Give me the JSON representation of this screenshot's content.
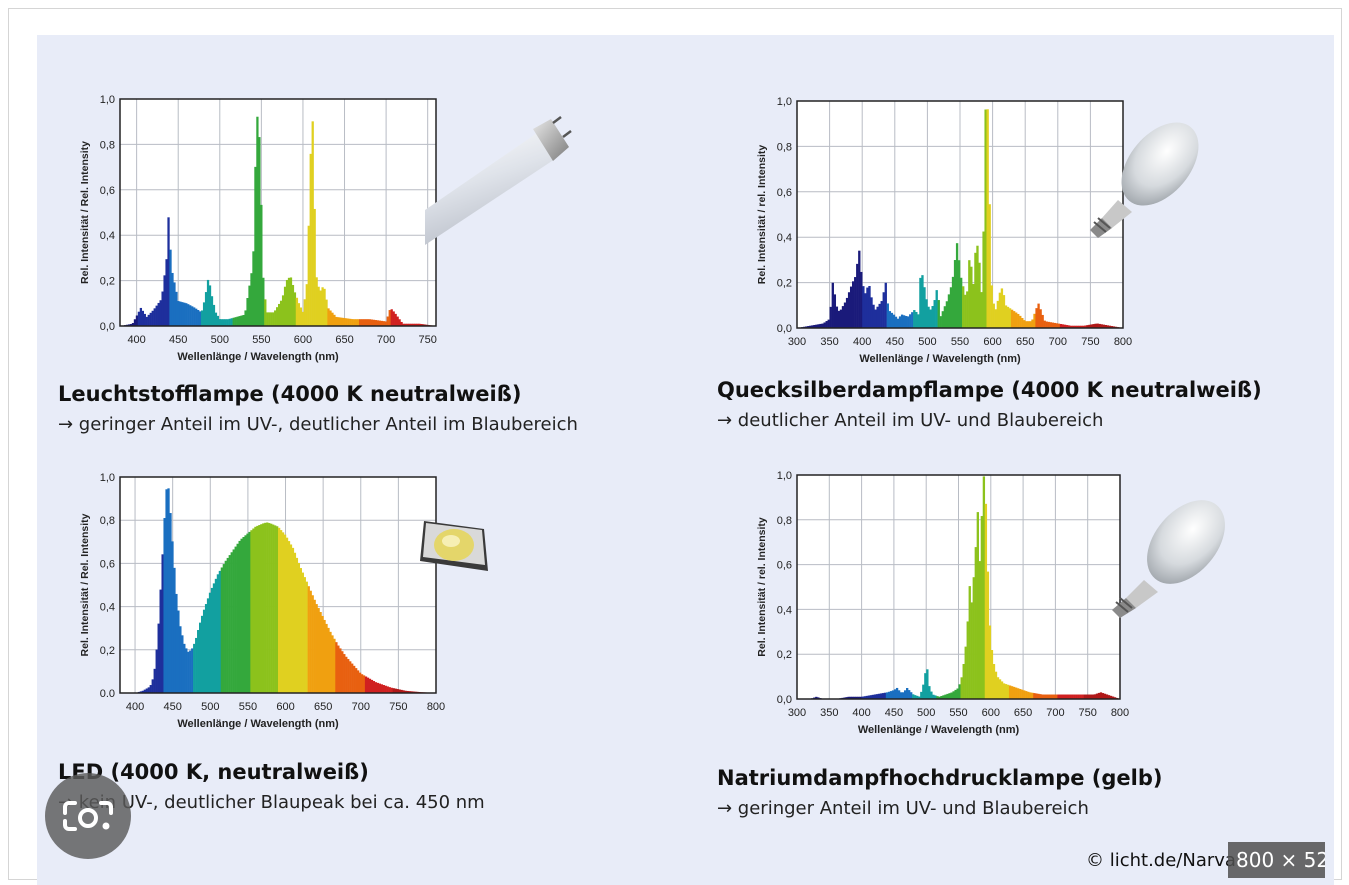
{
  "credit": "© licht.de/Narva",
  "size_badge": "800 × 52",
  "icons": {
    "lens": "google-lens-icon",
    "fluorescent": "fluorescent-tube-icon",
    "mercury": "mercury-bulb-icon",
    "led": "led-chip-icon",
    "sodium": "sodium-bulb-icon"
  },
  "spectrum_colors": [
    "#1a1a7a",
    "#1e2f9c",
    "#1a6fc0",
    "#12a0a0",
    "#34a83c",
    "#8cc21c",
    "#e0d020",
    "#f0a010",
    "#e86010",
    "#d02020",
    "#b01818"
  ],
  "lamps": [
    {
      "title": "Leuchtstofflampe (4000 K neutralweiß)",
      "subtitle": "→ geringer Anteil im UV-, deutlicher Anteil im Blaubereich"
    },
    {
      "title": "Quecksilberdampflampe (4000 K neutralweiß)",
      "subtitle": "→ deutlicher Anteil im UV- und Blaubereich"
    },
    {
      "title": "LED (4000 K, neutralweiß)",
      "subtitle": "→ kein UV-, deutlicher Blaupeak bei ca. 450 nm"
    },
    {
      "title": "Natriumdampfhochdrucklampe (gelb)",
      "subtitle": "→ geringer Anteil im UV- und Blaubereich"
    }
  ],
  "chart_data": [
    {
      "type": "bar",
      "xlabel": "Wellenlänge / Wavelength (nm)",
      "ylabel": "Rel. Intensität / Rel. Intensity",
      "xlim": [
        380,
        760
      ],
      "ylim": [
        0,
        1.0
      ],
      "x_ticks": [
        "400",
        "450",
        "500",
        "550",
        "600",
        "650",
        "700",
        "750"
      ],
      "y_ticks": [
        "0,0",
        "0,2",
        "0,4",
        "0,6",
        "0,8",
        "1,0"
      ],
      "grid": true,
      "x": [
        380,
        395,
        405,
        412,
        420,
        430,
        436,
        438,
        442,
        450,
        460,
        470,
        478,
        482,
        486,
        488,
        491,
        495,
        500,
        510,
        520,
        530,
        540,
        543,
        546,
        549,
        552,
        556,
        565,
        575,
        580,
        585,
        590,
        595,
        600,
        605,
        608,
        611,
        613,
        616,
        620,
        625,
        630,
        640,
        660,
        680,
        700,
        705,
        710,
        720,
        740,
        760
      ],
      "values": [
        0.0,
        0.01,
        0.08,
        0.04,
        0.07,
        0.12,
        0.3,
        0.49,
        0.25,
        0.11,
        0.1,
        0.08,
        0.06,
        0.12,
        0.21,
        0.18,
        0.12,
        0.06,
        0.03,
        0.03,
        0.04,
        0.05,
        0.28,
        0.75,
        1.0,
        0.65,
        0.22,
        0.06,
        0.06,
        0.12,
        0.2,
        0.22,
        0.15,
        0.1,
        0.06,
        0.2,
        0.6,
        1.0,
        0.65,
        0.22,
        0.15,
        0.18,
        0.08,
        0.04,
        0.03,
        0.03,
        0.02,
        0.08,
        0.06,
        0.01,
        0.01,
        0.0
      ]
    },
    {
      "type": "bar",
      "xlabel": "Wellenlänge / Wavelength (nm)",
      "ylabel": "Rel. Intensität / rel. Intensity",
      "xlim": [
        300,
        800
      ],
      "ylim": [
        0,
        1.0
      ],
      "x_ticks": [
        "300",
        "350",
        "400",
        "450",
        "500",
        "550",
        "600",
        "650",
        "700",
        "750",
        "800"
      ],
      "y_ticks": [
        "0,0",
        "0,2",
        "0,4",
        "0,6",
        "0,8",
        "1,0"
      ],
      "grid": true,
      "x": [
        300,
        320,
        340,
        350,
        355,
        360,
        365,
        375,
        385,
        390,
        395,
        400,
        405,
        410,
        415,
        420,
        430,
        436,
        440,
        448,
        455,
        460,
        470,
        480,
        486,
        490,
        500,
        505,
        510,
        515,
        520,
        530,
        538,
        546,
        550,
        560,
        565,
        570,
        575,
        580,
        583,
        585,
        588,
        590,
        593,
        597,
        600,
        605,
        610,
        615,
        620,
        630,
        640,
        650,
        660,
        670,
        680,
        700,
        720,
        740,
        760,
        780,
        800
      ],
      "values": [
        0.0,
        0.01,
        0.02,
        0.04,
        0.21,
        0.1,
        0.07,
        0.12,
        0.2,
        0.23,
        0.35,
        0.2,
        0.15,
        0.2,
        0.12,
        0.08,
        0.12,
        0.2,
        0.08,
        0.06,
        0.04,
        0.06,
        0.05,
        0.08,
        0.06,
        0.27,
        0.1,
        0.08,
        0.11,
        0.18,
        0.05,
        0.12,
        0.2,
        0.39,
        0.24,
        0.12,
        0.34,
        0.18,
        0.4,
        0.28,
        0.15,
        0.2,
        0.92,
        1.0,
        0.95,
        0.25,
        0.12,
        0.08,
        0.15,
        0.18,
        0.1,
        0.08,
        0.06,
        0.03,
        0.03,
        0.11,
        0.03,
        0.02,
        0.01,
        0.01,
        0.02,
        0.01,
        0.0
      ]
    },
    {
      "type": "area",
      "xlabel": "Wellenlänge / Wavelength (nm)",
      "ylabel": "Rel. Intensität / Rel. Intensity",
      "xlim": [
        380,
        800
      ],
      "ylim": [
        0,
        1.0
      ],
      "x_ticks": [
        "400",
        "450",
        "500",
        "550",
        "600",
        "650",
        "700",
        "750",
        "800"
      ],
      "y_ticks": [
        "0.0",
        "0,2",
        "0,4",
        "0,6",
        "0,8",
        "1,0"
      ],
      "grid": true,
      "x": [
        380,
        400,
        410,
        420,
        425,
        430,
        435,
        440,
        443,
        446,
        450,
        455,
        460,
        465,
        470,
        475,
        480,
        485,
        490,
        500,
        510,
        520,
        530,
        540,
        550,
        560,
        570,
        575,
        580,
        590,
        600,
        610,
        620,
        630,
        640,
        650,
        660,
        670,
        680,
        690,
        700,
        720,
        740,
        760,
        780,
        800
      ],
      "values": [
        0.0,
        0.0,
        0.01,
        0.03,
        0.08,
        0.25,
        0.55,
        0.87,
        1.0,
        0.88,
        0.68,
        0.45,
        0.31,
        0.23,
        0.19,
        0.2,
        0.24,
        0.31,
        0.37,
        0.47,
        0.55,
        0.61,
        0.66,
        0.71,
        0.74,
        0.77,
        0.785,
        0.79,
        0.785,
        0.77,
        0.73,
        0.67,
        0.58,
        0.5,
        0.42,
        0.35,
        0.28,
        0.22,
        0.17,
        0.13,
        0.09,
        0.05,
        0.025,
        0.01,
        0.004,
        0.0
      ]
    },
    {
      "type": "bar",
      "xlabel": "Wellenlänge / Wavelength (nm)",
      "ylabel": "Rel. Intensität / rel. Intensity",
      "xlim": [
        300,
        800
      ],
      "ylim": [
        0,
        1.0
      ],
      "x_ticks": [
        "300",
        "350",
        "400",
        "450",
        "500",
        "550",
        "600",
        "650",
        "700",
        "750",
        "800"
      ],
      "y_ticks": [
        "0,0",
        "0,2",
        "0,4",
        "0,6",
        "0,8",
        "1,0"
      ],
      "grid": true,
      "x": [
        300,
        320,
        330,
        340,
        360,
        380,
        400,
        420,
        440,
        450,
        455,
        460,
        465,
        470,
        480,
        490,
        495,
        498,
        500,
        505,
        510,
        520,
        540,
        550,
        555,
        560,
        565,
        568,
        570,
        575,
        580,
        583,
        585,
        587,
        589,
        591,
        593,
        595,
        597,
        600,
        605,
        610,
        620,
        630,
        640,
        650,
        660,
        680,
        700,
        720,
        740,
        760,
        770,
        780,
        800
      ],
      "values": [
        0.0,
        0.0,
        0.01,
        0.0,
        0.0,
        0.01,
        0.01,
        0.02,
        0.03,
        0.04,
        0.05,
        0.03,
        0.03,
        0.05,
        0.02,
        0.01,
        0.06,
        0.1,
        0.17,
        0.05,
        0.02,
        0.01,
        0.03,
        0.05,
        0.1,
        0.2,
        0.38,
        0.55,
        0.42,
        0.6,
        0.85,
        0.6,
        0.92,
        0.7,
        1.0,
        0.8,
        0.92,
        0.6,
        0.4,
        0.25,
        0.15,
        0.1,
        0.07,
        0.06,
        0.05,
        0.04,
        0.03,
        0.02,
        0.02,
        0.02,
        0.02,
        0.02,
        0.03,
        0.02,
        0.0
      ]
    }
  ]
}
